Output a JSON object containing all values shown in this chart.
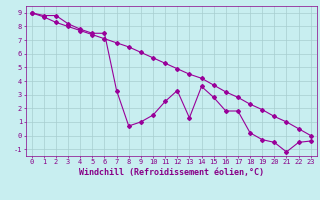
{
  "xlabel": "Windchill (Refroidissement éolien,°C)",
  "background_color": "#c8eef0",
  "grid_color": "#a8cdd0",
  "line_color": "#990099",
  "series1_x": [
    0,
    1,
    2,
    3,
    4,
    5,
    6,
    7,
    8,
    9,
    10,
    11,
    12,
    13,
    14,
    15,
    16,
    17,
    18,
    19,
    20,
    21,
    22,
    23
  ],
  "series1_y": [
    9,
    8.8,
    8.8,
    8.2,
    7.8,
    7.5,
    7.5,
    3.3,
    0.7,
    1.0,
    1.5,
    2.5,
    3.3,
    1.3,
    3.6,
    2.8,
    1.8,
    1.8,
    0.2,
    -0.3,
    -0.5,
    -1.2,
    -0.5,
    -0.4
  ],
  "series2_x": [
    0,
    1,
    2,
    3,
    4,
    5,
    6,
    7,
    8,
    9,
    10,
    11,
    12,
    13,
    14,
    15,
    16,
    17,
    18,
    19,
    20,
    21,
    22,
    23
  ],
  "series2_y": [
    9.0,
    8.7,
    8.3,
    8.0,
    7.7,
    7.4,
    7.1,
    6.8,
    6.5,
    6.1,
    5.7,
    5.3,
    4.9,
    4.5,
    4.2,
    3.7,
    3.2,
    2.8,
    2.3,
    1.9,
    1.4,
    1.0,
    0.5,
    0.0
  ],
  "ylim": [
    -1.5,
    9.5
  ],
  "xlim": [
    -0.5,
    23.5
  ],
  "yticks": [
    -1,
    0,
    1,
    2,
    3,
    4,
    5,
    6,
    7,
    8,
    9
  ],
  "xticks": [
    0,
    1,
    2,
    3,
    4,
    5,
    6,
    7,
    8,
    9,
    10,
    11,
    12,
    13,
    14,
    15,
    16,
    17,
    18,
    19,
    20,
    21,
    22,
    23
  ],
  "marker": "D",
  "marker_size": 2,
  "line_width": 0.8,
  "font_color": "#880088",
  "tick_fontsize": 5.0,
  "xlabel_fontsize": 6.0
}
